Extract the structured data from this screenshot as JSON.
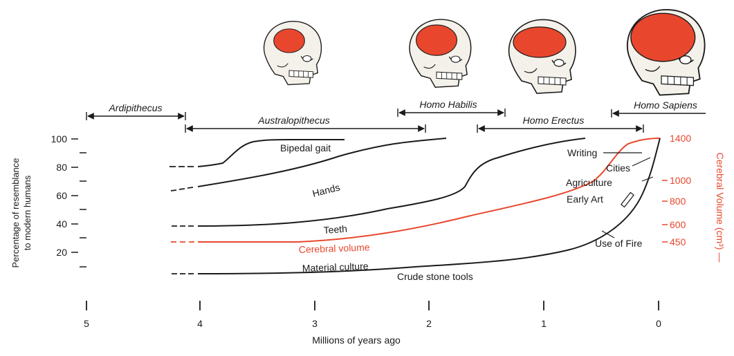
{
  "colors": {
    "black": "#1a1a1a",
    "red": "#e8472e",
    "bone": "#f4f1ea",
    "brain": "#e8472e"
  },
  "eras": [
    {
      "id": "ardipithecus",
      "label": "Ardipithecus"
    },
    {
      "id": "australopithecus",
      "label": "Australopithecus"
    },
    {
      "id": "habilis",
      "label": "Homo Habilis"
    },
    {
      "id": "erectus",
      "label": "Homo Erectus"
    },
    {
      "id": "sapiens",
      "label": "Homo Sapiens"
    }
  ],
  "skulls": [
    {
      "name": "australopithecus-skull-icon",
      "relative_brain": 0.5
    },
    {
      "name": "habilis-skull-icon",
      "relative_brain": 0.65
    },
    {
      "name": "erectus-skull-icon",
      "relative_brain": 0.8
    },
    {
      "name": "sapiens-skull-icon",
      "relative_brain": 1.0
    }
  ],
  "left_axis": {
    "title_line1": "Percentage of resemblance",
    "title_line2": "to modern humans",
    "ticks": [
      "100",
      "80",
      "60",
      "40",
      "20"
    ]
  },
  "right_axis": {
    "title": "Cerebral Volume (cm³) —",
    "ticks": [
      "1400",
      "1000",
      "800",
      "600",
      "450"
    ]
  },
  "x_axis": {
    "title": "Millions of years ago",
    "ticks": [
      "5",
      "4",
      "3",
      "2",
      "1",
      "0"
    ]
  },
  "curves": {
    "bipedal": "Bipedal gait",
    "hands": "Hands",
    "teeth": "Teeth",
    "cerebral": "Cerebral volume",
    "material": "Material culture",
    "stone": "Crude stone tools"
  },
  "milestones": {
    "writing": "Writing",
    "cities": "Cities",
    "agriculture": "Agriculture",
    "early_art": "Early Art",
    "fire": "Use of Fire"
  }
}
